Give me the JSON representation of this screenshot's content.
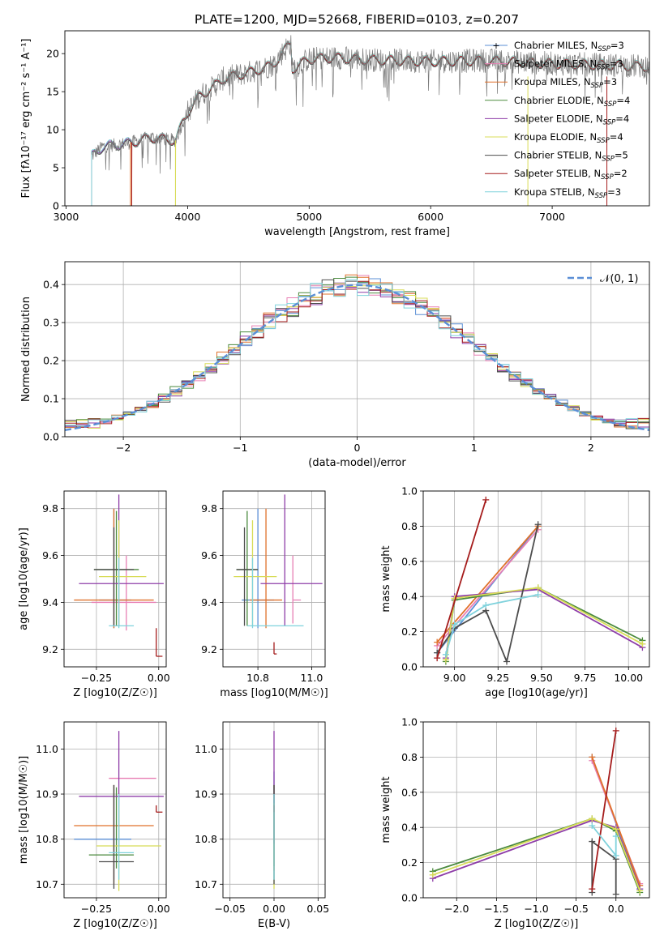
{
  "figure": {
    "title": "PLATE=1200, MJD=52668, FIBERID=0103, z=0.207"
  },
  "colors": {
    "palette": [
      "#5b8fd6",
      "#e87fb4",
      "#e0712b",
      "#4b8a3e",
      "#8e3da8",
      "#d8dc58",
      "#4d4d4d",
      "#a51c1c",
      "#7fd2dc"
    ],
    "gauss": "#5b8fd6"
  },
  "chart_data": [
    {
      "id": "spectrum",
      "type": "line",
      "xlabel": "wavelength [Angstrom, rest frame]",
      "ylabel": "Flux [fλ10⁻¹⁷ erg cm⁻² s⁻¹ A⁻¹]",
      "xlim": [
        2990,
        7800
      ],
      "ylim": [
        0,
        23
      ],
      "xticks": [
        3000,
        4000,
        5000,
        6000,
        7000
      ],
      "yticks": [
        0,
        5,
        10,
        15,
        20
      ],
      "legend_position": "upper right",
      "data_range": [
        3210,
        7800
      ],
      "continuum": [
        [
          3210,
          6.5
        ],
        [
          3300,
          7.8
        ],
        [
          3500,
          8.2
        ],
        [
          3700,
          9.0
        ],
        [
          3900,
          8.6
        ],
        [
          3960,
          11.0
        ],
        [
          4000,
          12.3
        ],
        [
          4100,
          14.5
        ],
        [
          4200,
          15.5
        ],
        [
          4300,
          16.8
        ],
        [
          4500,
          17.5
        ],
        [
          4700,
          18.5
        ],
        [
          4850,
          21.5
        ],
        [
          4860,
          18.0
        ],
        [
          5000,
          19.3
        ],
        [
          5200,
          19.5
        ],
        [
          5500,
          19.2
        ],
        [
          6000,
          19.0
        ],
        [
          6500,
          19.1
        ],
        [
          7000,
          18.7
        ],
        [
          7500,
          18.5
        ],
        [
          7800,
          18.3
        ]
      ],
      "model_starts": [
        3210,
        3210,
        3530,
        3210,
        3210,
        3900,
        3210,
        3540,
        3210
      ],
      "series": [
        {
          "name": "Chabrier MILES, N_SSP=3",
          "label": "Chabrier MILES, N",
          "sub": "SSP",
          "suffix": "=3"
        },
        {
          "name": "Salpeter MILES, N_SSP=3",
          "label": "Salpeter MILES, N",
          "sub": "SSP",
          "suffix": "=3"
        },
        {
          "name": "Kroupa MILES, N_SSP=3",
          "label": "Kroupa MILES, N",
          "sub": "SSP",
          "suffix": "=3"
        },
        {
          "name": "Chabrier ELODIE, N_SSP=4",
          "label": "Chabrier ELODIE, N",
          "sub": "SSP",
          "suffix": "=4"
        },
        {
          "name": "Salpeter ELODIE, N_SSP=4",
          "label": "Salpeter ELODIE, N",
          "sub": "SSP",
          "suffix": "=4"
        },
        {
          "name": "Kroupa ELODIE, N_SSP=4",
          "label": "Kroupa ELODIE, N",
          "sub": "SSP",
          "suffix": "=4"
        },
        {
          "name": "Chabrier STELIB, N_SSP=5",
          "label": "Chabrier STELIB, N",
          "sub": "SSP",
          "suffix": "=5"
        },
        {
          "name": "Salpeter STELIB, N_SSP=2",
          "label": "Salpeter STELIB, N",
          "sub": "SSP",
          "suffix": "=2"
        },
        {
          "name": "Kroupa STELIB, N_SSP=3",
          "label": "Kroupa STELIB, N",
          "sub": "SSP",
          "suffix": "=3"
        }
      ]
    },
    {
      "id": "residuals",
      "type": "line",
      "xlabel": "(data-model)/error",
      "ylabel": "Normed distribution",
      "xlim": [
        -2.5,
        2.5
      ],
      "ylim": [
        0,
        0.46
      ],
      "xticks": [
        -2,
        -1,
        0,
        1,
        2
      ],
      "yticks": [
        0.0,
        0.1,
        0.2,
        0.3,
        0.4
      ],
      "grid": true,
      "bin_width": 0.1,
      "legend_position": "upper right",
      "gauss_label": "𝒩(0, 1)",
      "gauss_mean": 0,
      "gauss_sigma": 1
    },
    {
      "id": "age_vs_Z",
      "type": "errorbar",
      "xlabel": "Z [log10(Z/Z☉)]",
      "ylabel": "age  [log10(age/yr)]",
      "xlim": [
        -0.38,
        0.03
      ],
      "ylim": [
        9.125,
        9.875
      ],
      "xticks": [
        -0.25,
        0.0
      ],
      "xticklabels": [
        "−0.25",
        "0.00"
      ],
      "yticks": [
        9.2,
        9.4,
        9.6,
        9.8
      ],
      "grid": true,
      "points": [
        {
          "x": -0.18,
          "xerr": [
            0.06,
            0.07
          ],
          "y": 9.41,
          "yerr": [
            0.12,
            0.39
          ]
        },
        {
          "x": -0.13,
          "xerr": [
            0.14,
            0.12
          ],
          "y": 9.4,
          "yerr": [
            0.12,
            0.2
          ]
        },
        {
          "x": -0.18,
          "xerr": [
            0.16,
            0.16
          ],
          "y": 9.41,
          "yerr": [
            0.12,
            0.39
          ]
        },
        {
          "x": -0.17,
          "xerr": [
            0.09,
            0.09
          ],
          "y": 9.54,
          "yerr": [
            0.24,
            0.25
          ]
        },
        {
          "x": -0.16,
          "xerr": [
            0.16,
            0.18
          ],
          "y": 9.48,
          "yerr": [
            0.18,
            0.38
          ]
        },
        {
          "x": -0.16,
          "xerr": [
            0.08,
            0.11
          ],
          "y": 9.51,
          "yerr": [
            0.21,
            0.24
          ]
        },
        {
          "x": -0.18,
          "xerr": [
            0.08,
            0.08
          ],
          "y": 9.54,
          "yerr": [
            0.24,
            0.18
          ]
        },
        {
          "x": -0.01,
          "xerr": [
            0.0,
            0.025
          ],
          "y": 9.17,
          "yerr": [
            0.0,
            0.12
          ]
        },
        {
          "x": -0.16,
          "xerr": [
            0.04,
            0.06
          ],
          "y": 9.3,
          "yerr": [
            0.01,
            0.29
          ]
        }
      ]
    },
    {
      "id": "age_vs_mass",
      "type": "errorbar",
      "xlabel": "mass [log10(M/M☉)]",
      "ylabel": "",
      "xlim": [
        10.67,
        11.05
      ],
      "ylim": [
        9.125,
        9.875
      ],
      "xticks": [
        10.8,
        11.0
      ],
      "xticklabels": [
        "10.8",
        "11.0"
      ],
      "yticks": [
        9.2,
        9.4,
        9.6,
        9.8
      ],
      "grid": true,
      "points": [
        {
          "x": 10.8,
          "xerr": [
            0.06,
            0.06
          ],
          "y": 9.41,
          "yerr": [
            0.12,
            0.39
          ]
        },
        {
          "x": 10.93,
          "xerr": [
            0.0,
            0.03
          ],
          "y": 9.41,
          "yerr": [
            0.1,
            0.19
          ]
        },
        {
          "x": 10.83,
          "xerr": [
            0.06,
            0.06
          ],
          "y": 9.41,
          "yerr": [
            0.12,
            0.39
          ]
        },
        {
          "x": 10.76,
          "xerr": [
            0.04,
            0.04
          ],
          "y": 9.54,
          "yerr": [
            0.24,
            0.25
          ]
        },
        {
          "x": 10.9,
          "xerr": [
            0.09,
            0.14
          ],
          "y": 9.48,
          "yerr": [
            0.18,
            0.38
          ]
        },
        {
          "x": 10.78,
          "xerr": [
            0.07,
            0.09
          ],
          "y": 9.51,
          "yerr": [
            0.21,
            0.24
          ]
        },
        {
          "x": 10.75,
          "xerr": [
            0.03,
            0.05
          ],
          "y": 9.54,
          "yerr": [
            0.24,
            0.18
          ]
        },
        {
          "x": 10.86,
          "xerr": [
            0.0,
            0.01
          ],
          "y": 9.18,
          "yerr": [
            0.0,
            0.05
          ]
        },
        {
          "x": 10.78,
          "xerr": [
            0.02,
            0.19
          ],
          "y": 9.3,
          "yerr": [
            0.01,
            0.29
          ]
        }
      ]
    },
    {
      "id": "weight_vs_age",
      "type": "line",
      "xlabel": "age  [log10(age/yr)]",
      "ylabel": "mass weight",
      "xlim": [
        8.82,
        10.12
      ],
      "ylim": [
        0.0,
        1.0
      ],
      "xticks": [
        9.0,
        9.25,
        9.5,
        9.75,
        10.0
      ],
      "xticklabels": [
        "9.00",
        "9.25",
        "9.50",
        "9.75",
        "10.00"
      ],
      "yticks": [
        0.0,
        0.2,
        0.4,
        0.6,
        0.8,
        1.0
      ],
      "grid": true,
      "series": [
        {
          "x": [
            8.9,
            9.48
          ],
          "y": [
            0.08,
            0.8
          ]
        },
        {
          "x": [
            8.9,
            9.48
          ],
          "y": [
            0.12,
            0.78
          ]
        },
        {
          "x": [
            8.9,
            9.48
          ],
          "y": [
            0.14,
            0.8
          ]
        },
        {
          "x": [
            8.95,
            9.0,
            9.48,
            10.08
          ],
          "y": [
            0.03,
            0.38,
            0.45,
            0.15
          ]
        },
        {
          "x": [
            8.95,
            9.0,
            9.48,
            10.08
          ],
          "y": [
            0.05,
            0.4,
            0.44,
            0.11
          ]
        },
        {
          "x": [
            8.95,
            9.0,
            9.48,
            10.08
          ],
          "y": [
            0.04,
            0.39,
            0.45,
            0.13
          ]
        },
        {
          "x": [
            8.9,
            9.0,
            9.18,
            9.3,
            9.48
          ],
          "y": [
            0.08,
            0.22,
            0.32,
            0.03,
            0.81
          ]
        },
        {
          "x": [
            8.9,
            9.18
          ],
          "y": [
            0.05,
            0.95
          ]
        },
        {
          "x": [
            8.95,
            9.0,
            9.18,
            9.48
          ],
          "y": [
            0.07,
            0.24,
            0.35,
            0.41
          ]
        }
      ]
    },
    {
      "id": "mass_vs_Z",
      "type": "errorbar",
      "xlabel": "Z [log10(Z/Z☉)]",
      "ylabel": "mass [log10(M/M☉)]",
      "xlim": [
        -0.38,
        0.03
      ],
      "ylim": [
        10.67,
        11.06
      ],
      "xticks": [
        -0.25,
        0.0
      ],
      "xticklabels": [
        "−0.25",
        "0.00"
      ],
      "yticks": [
        10.7,
        10.8,
        10.9,
        11.0
      ],
      "grid": true,
      "points": [
        {
          "x": -0.18,
          "xerr": [
            0.16,
            0.07
          ],
          "y": 10.8,
          "yerr": [
            0.09,
            0.12
          ]
        },
        {
          "x": -0.13,
          "xerr": [
            0.07,
            0.12
          ],
          "y": 10.935,
          "yerr": [
            0.0,
            0.0
          ]
        },
        {
          "x": -0.18,
          "xerr": [
            0.16,
            0.16
          ],
          "y": 10.83,
          "yerr": [
            0.13,
            0.09
          ]
        },
        {
          "x": -0.17,
          "xerr": [
            0.11,
            0.07
          ],
          "y": 10.765,
          "yerr": [
            0.03,
            0.15
          ]
        },
        {
          "x": -0.16,
          "xerr": [
            0.16,
            0.18
          ],
          "y": 10.895,
          "yerr": [
            0.11,
            0.145
          ]
        },
        {
          "x": -0.16,
          "xerr": [
            0.09,
            0.17
          ],
          "y": 10.785,
          "yerr": [
            0.1,
            0.09
          ]
        },
        {
          "x": -0.18,
          "xerr": [
            0.06,
            0.08
          ],
          "y": 10.75,
          "yerr": [
            0.06,
            0.17
          ]
        },
        {
          "x": -0.01,
          "xerr": [
            0.0,
            0.025
          ],
          "y": 10.86,
          "yerr": [
            0.0,
            0.015
          ]
        },
        {
          "x": -0.16,
          "xerr": [
            0.04,
            0.06
          ],
          "y": 10.77,
          "yerr": [
            0.06,
            0.13
          ]
        }
      ]
    },
    {
      "id": "mass_vs_ebv",
      "type": "errorbar",
      "xlabel": "E(B-V)",
      "ylabel": "",
      "xlim": [
        -0.058,
        0.058
      ],
      "ylim": [
        10.67,
        11.06
      ],
      "xticks": [
        -0.05,
        0.0,
        0.05
      ],
      "xticklabels": [
        "−0.05",
        "0.00",
        "0.05"
      ],
      "yticks": [
        10.7,
        10.8,
        10.9,
        11.0
      ],
      "grid": true,
      "points": [
        {
          "x": 0.0,
          "y": 10.82,
          "yerr": [
            0.11,
            0.13
          ]
        },
        {
          "x": 0.0,
          "y": 10.94,
          "yerr": [
            0.0,
            0.0
          ]
        },
        {
          "x": 0.0,
          "y": 10.83,
          "yerr": [
            0.1,
            0.09
          ]
        },
        {
          "x": 0.0,
          "y": 10.77,
          "yerr": [
            0.03,
            0.15
          ]
        },
        {
          "x": 0.0,
          "y": 10.89,
          "yerr": [
            0.1,
            0.15
          ]
        },
        {
          "x": 0.0,
          "y": 10.78,
          "yerr": [
            0.09,
            0.1
          ]
        },
        {
          "x": 0.0,
          "y": 10.75,
          "yerr": [
            0.05,
            0.17
          ]
        },
        {
          "x": 0.0,
          "y": 10.86,
          "yerr": [
            0.0,
            0.015
          ]
        },
        {
          "x": 0.0,
          "y": 10.77,
          "yerr": [
            0.06,
            0.13
          ]
        }
      ]
    },
    {
      "id": "weight_vs_Z",
      "type": "line",
      "xlabel": "Z [log10(Z/Z☉)]",
      "ylabel": "mass weight",
      "xlim": [
        -2.42,
        0.42
      ],
      "ylim": [
        0.0,
        1.0
      ],
      "xticks": [
        -2.0,
        -1.5,
        -1.0,
        -0.5,
        0.0
      ],
      "xticklabels": [
        "−2.0",
        "−1.5",
        "−1.0",
        "−0.5",
        "0.0"
      ],
      "yticks": [
        0.0,
        0.2,
        0.4,
        0.6,
        0.8,
        1.0
      ],
      "grid": true,
      "series": [
        {
          "x": [
            -0.3,
            0.3
          ],
          "y": [
            0.8,
            0.05
          ]
        },
        {
          "x": [
            -0.3,
            0.3
          ],
          "y": [
            0.78,
            0.08
          ]
        },
        {
          "x": [
            -0.3,
            0.3
          ],
          "y": [
            0.8,
            0.07
          ]
        },
        {
          "x": [
            -2.3,
            -0.3,
            0.0,
            0.3
          ],
          "y": [
            0.15,
            0.45,
            0.38,
            0.03
          ]
        },
        {
          "x": [
            -2.3,
            -0.3,
            0.0,
            0.3
          ],
          "y": [
            0.11,
            0.44,
            0.4,
            0.05
          ]
        },
        {
          "x": [
            -2.3,
            -0.3,
            0.0,
            0.3
          ],
          "y": [
            0.13,
            0.45,
            0.39,
            0.04
          ]
        },
        {
          "x": [
            -0.3,
            -0.3,
            0.0,
            0.0
          ],
          "y": [
            0.03,
            0.32,
            0.22,
            0.02
          ]
        },
        {
          "x": [
            -0.3,
            0.0
          ],
          "y": [
            0.05,
            0.95
          ]
        },
        {
          "x": [
            -0.3,
            0.0,
            0.0
          ],
          "y": [
            0.41,
            0.24,
            0.35
          ]
        }
      ]
    }
  ]
}
